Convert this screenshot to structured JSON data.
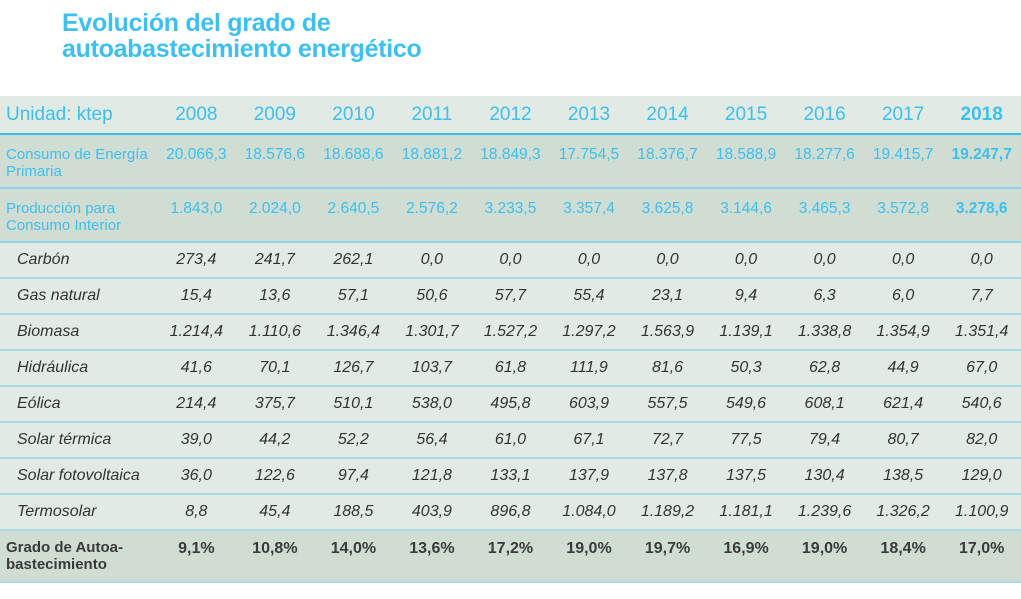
{
  "title": {
    "line1": "Evolución del grado de",
    "line2": "autoabastecimiento energético"
  },
  "table": {
    "unit_label": "Unidad: ktep",
    "years": [
      "2008",
      "2009",
      "2010",
      "2011",
      "2012",
      "2013",
      "2014",
      "2015",
      "2016",
      "2017",
      "2018"
    ],
    "main_rows": [
      {
        "label": "Consumo de Energía Primaria",
        "values": [
          "20.066,3",
          "18.576,6",
          "18.688,6",
          "18.881,2",
          "18.849,3",
          "17.754,5",
          "18.376,7",
          "18.588,9",
          "18.277,6",
          "19.415,7",
          "19.247,7"
        ]
      },
      {
        "label": "Producción para Consumo Interior",
        "values": [
          "1.843,0",
          "2.024,0",
          "2.640,5",
          "2.576,2",
          "3.233,5",
          "3.357,4",
          "3.625,8",
          "3.144,6",
          "3.465,3",
          "3.572,8",
          "3.278,6"
        ]
      }
    ],
    "sub_rows": [
      {
        "label": "Carbón",
        "values": [
          "273,4",
          "241,7",
          "262,1",
          "0,0",
          "0,0",
          "0,0",
          "0,0",
          "0,0",
          "0,0",
          "0,0",
          "0,0"
        ]
      },
      {
        "label": "Gas natural",
        "values": [
          "15,4",
          "13,6",
          "57,1",
          "50,6",
          "57,7",
          "55,4",
          "23,1",
          "9,4",
          "6,3",
          "6,0",
          "7,7"
        ]
      },
      {
        "label": "Biomasa",
        "values": [
          "1.214,4",
          "1.110,6",
          "1.346,4",
          "1.301,7",
          "1.527,2",
          "1.297,2",
          "1.563,9",
          "1.139,1",
          "1.338,8",
          "1.354,9",
          "1.351,4"
        ]
      },
      {
        "label": "Hidráulica",
        "values": [
          "41,6",
          "70,1",
          "126,7",
          "103,7",
          "61,8",
          "111,9",
          "81,6",
          "50,3",
          "62,8",
          "44,9",
          "67,0"
        ]
      },
      {
        "label": "Eólica",
        "values": [
          "214,4",
          "375,7",
          "510,1",
          "538,0",
          "495,8",
          "603,9",
          "557,5",
          "549,6",
          "608,1",
          "621,4",
          "540,6"
        ]
      },
      {
        "label": "Solar térmica",
        "values": [
          "39,0",
          "44,2",
          "52,2",
          "56,4",
          "61,0",
          "67,1",
          "72,7",
          "77,5",
          "79,4",
          "80,7",
          "82,0"
        ]
      },
      {
        "label": "Solar fotovoltaica",
        "values": [
          "36,0",
          "122,6",
          "97,4",
          "121,8",
          "133,1",
          "137,9",
          "137,8",
          "137,5",
          "130,4",
          "138,5",
          "129,0"
        ]
      },
      {
        "label": "Termosolar",
        "values": [
          "8,8",
          "45,4",
          "188,5",
          "403,9",
          "896,8",
          "1.084,0",
          "1.189,2",
          "1.181,1",
          "1.239,6",
          "1.326,2",
          "1.100,9"
        ]
      }
    ],
    "grade_row": {
      "label": "Grado de Autoa- bastecimiento",
      "values": [
        "9,1%",
        "10,8%",
        "14,0%",
        "13,6%",
        "17,2%",
        "19,0%",
        "19,7%",
        "16,9%",
        "19,0%",
        "18,4%",
        "17,0%"
      ]
    }
  },
  "colors": {
    "accent": "#3dbfef",
    "header_bg": "#e1ebe4",
    "main_row_bg": "#cfddd2",
    "text_dark": "#333333"
  },
  "chart_data": {
    "type": "table",
    "title": "Evolución del grado de autoabastecimiento energético",
    "unit": "ktep",
    "columns": [
      "2008",
      "2009",
      "2010",
      "2011",
      "2012",
      "2013",
      "2014",
      "2015",
      "2016",
      "2017",
      "2018"
    ],
    "rows": [
      {
        "name": "Consumo de Energía Primaria",
        "values": [
          20066.3,
          18576.6,
          18688.6,
          18881.2,
          18849.3,
          17754.5,
          18376.7,
          18588.9,
          18277.6,
          19415.7,
          19247.7
        ]
      },
      {
        "name": "Producción para Consumo Interior",
        "values": [
          1843.0,
          2024.0,
          2640.5,
          2576.2,
          3233.5,
          3357.4,
          3625.8,
          3144.6,
          3465.3,
          3572.8,
          3278.6
        ]
      },
      {
        "name": "Carbón",
        "values": [
          273.4,
          241.7,
          262.1,
          0.0,
          0.0,
          0.0,
          0.0,
          0.0,
          0.0,
          0.0,
          0.0
        ]
      },
      {
        "name": "Gas natural",
        "values": [
          15.4,
          13.6,
          57.1,
          50.6,
          57.7,
          55.4,
          23.1,
          9.4,
          6.3,
          6.0,
          7.7
        ]
      },
      {
        "name": "Biomasa",
        "values": [
          1214.4,
          1110.6,
          1346.4,
          1301.7,
          1527.2,
          1297.2,
          1563.9,
          1139.1,
          1338.8,
          1354.9,
          1351.4
        ]
      },
      {
        "name": "Hidráulica",
        "values": [
          41.6,
          70.1,
          126.7,
          103.7,
          61.8,
          111.9,
          81.6,
          50.3,
          62.8,
          44.9,
          67.0
        ]
      },
      {
        "name": "Eólica",
        "values": [
          214.4,
          375.7,
          510.1,
          538.0,
          495.8,
          603.9,
          557.5,
          549.6,
          608.1,
          621.4,
          540.6
        ]
      },
      {
        "name": "Solar térmica",
        "values": [
          39.0,
          44.2,
          52.2,
          56.4,
          61.0,
          67.1,
          72.7,
          77.5,
          79.4,
          80.7,
          82.0
        ]
      },
      {
        "name": "Solar fotovoltaica",
        "values": [
          36.0,
          122.6,
          97.4,
          121.8,
          133.1,
          137.9,
          137.8,
          137.5,
          130.4,
          138.5,
          129.0
        ]
      },
      {
        "name": "Termosolar",
        "values": [
          8.8,
          45.4,
          188.5,
          403.9,
          896.8,
          1084.0,
          1189.2,
          1181.1,
          1239.6,
          1326.2,
          1100.9
        ]
      },
      {
        "name": "Grado de Autoabastecimiento (%)",
        "values": [
          9.1,
          10.8,
          14.0,
          13.6,
          17.2,
          19.0,
          19.7,
          16.9,
          19.0,
          18.4,
          17.0
        ]
      }
    ]
  }
}
